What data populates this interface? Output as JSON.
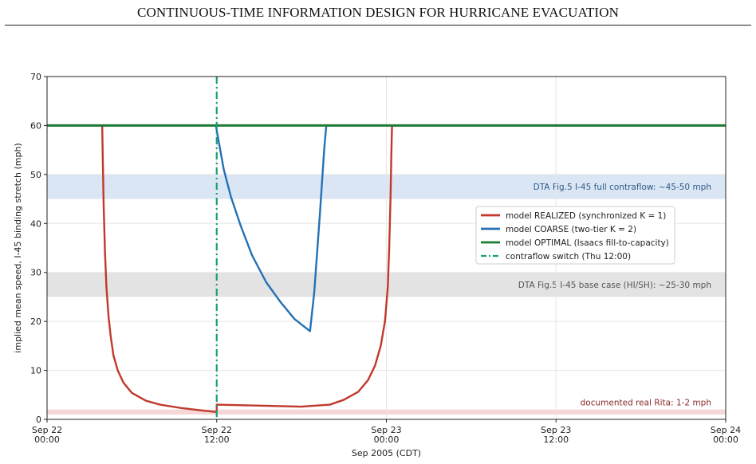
{
  "page": {
    "title": "CONTINUOUS-TIME INFORMATION DESIGN FOR HURRICANE EVACUATION"
  },
  "chart_data": {
    "type": "line",
    "xlabel": "Sep 2005 (CDT)",
    "ylabel": "implied mean speed, I-45 binding stretch (mph)",
    "xlim": [
      0,
      48
    ],
    "ylim": [
      0,
      70
    ],
    "x_unit": "hours since Sep 22 00:00",
    "x_ticks": [
      {
        "value": 0,
        "line1": "Sep 22",
        "line2": "00:00"
      },
      {
        "value": 12,
        "line1": "Sep 22",
        "line2": "12:00"
      },
      {
        "value": 24,
        "line1": "Sep 23",
        "line2": "00:00"
      },
      {
        "value": 36,
        "line1": "Sep 23",
        "line2": "12:00"
      },
      {
        "value": 48,
        "line1": "Sep 24",
        "line2": "00:00"
      }
    ],
    "y_ticks": [
      0,
      10,
      20,
      30,
      40,
      50,
      60,
      70
    ],
    "grid": true,
    "legend_position": "right",
    "bands": [
      {
        "name": "dta-full-contraflow-band",
        "y0": 45,
        "y1": 50,
        "color": "#dbe6f4",
        "label": "DTA Fig.5 I-45 full contraflow: ~45-50 mph",
        "label_color": "#2e5a8a"
      },
      {
        "name": "dta-base-case-band",
        "y0": 25,
        "y1": 30,
        "color": "#e3e3e3",
        "label": "DTA Fig.5 I-45 base case (HI/SH): ~25-30 mph",
        "label_color": "#555555"
      },
      {
        "name": "real-rita-band",
        "y0": 1,
        "y1": 2,
        "color": "#f6d6d6",
        "label": "documented real Rita: 1-2 mph",
        "label_color": "#8a2a2a"
      }
    ],
    "vline": {
      "x": 12,
      "color": "#1b9e77",
      "label": "contraflow switch (Thu 12:00)"
    },
    "series": [
      {
        "name": "model REALIZED (synchronized K = 1)",
        "color": "#c0392b",
        "x": [
          0,
          3.9,
          3.95,
          4.0,
          4.1,
          4.2,
          4.35,
          4.5,
          4.7,
          5.0,
          5.4,
          6.0,
          7.0,
          8.0,
          9.5,
          11.0,
          12.0,
          12.0,
          12.05,
          18.0,
          20.0,
          21.0,
          22.0,
          22.7,
          23.2,
          23.6,
          23.9,
          24.1,
          24.2,
          24.3,
          24.35,
          24.4,
          48
        ],
        "y": [
          60,
          60,
          52,
          44,
          34,
          27,
          21,
          17,
          13,
          10,
          7.5,
          5.4,
          3.8,
          3.0,
          2.3,
          1.8,
          1.5,
          3.0,
          3.0,
          2.6,
          3.0,
          4.0,
          5.6,
          8.0,
          11.0,
          15.0,
          20.0,
          27.0,
          35.0,
          46.0,
          54.0,
          60,
          60
        ]
      },
      {
        "name": "model COARSE (two-tier K = 2)",
        "color": "#2471b5",
        "x": [
          0,
          11.95,
          12.0,
          12.5,
          13.0,
          13.7,
          14.5,
          15.5,
          16.5,
          17.5,
          18.6,
          18.9,
          19.3,
          19.6,
          19.75,
          48
        ],
        "y": [
          60,
          60,
          59,
          51,
          45.5,
          39.5,
          33.5,
          28,
          24,
          20.5,
          18,
          26,
          42,
          55,
          60,
          60
        ]
      },
      {
        "name": "model OPTIMAL (Isaacs fill-to-capacity)",
        "color": "#1e7b34",
        "x": [
          0,
          48
        ],
        "y": [
          60,
          60
        ]
      }
    ],
    "legend": [
      {
        "label": "model REALIZED (synchronized K = 1)",
        "color": "#c0392b",
        "style": "solid"
      },
      {
        "label": "model COARSE (two-tier K = 2)",
        "color": "#2471b5",
        "style": "solid"
      },
      {
        "label": "model OPTIMAL (Isaacs fill-to-capacity)",
        "color": "#1e7b34",
        "style": "solid"
      },
      {
        "label": "contraflow switch (Thu 12:00)",
        "color": "#1b9e77",
        "style": "dashdot"
      }
    ]
  }
}
